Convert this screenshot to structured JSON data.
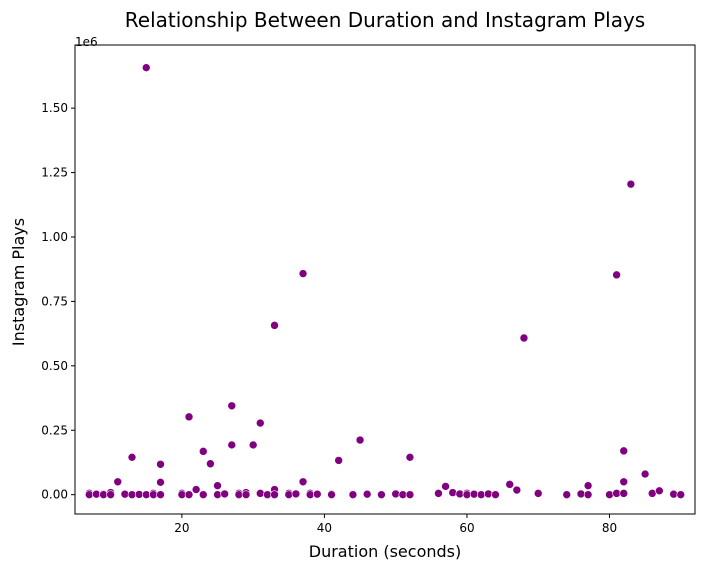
{
  "chart_data": {
    "type": "scatter",
    "title": "Relationship Between Duration and Instagram Plays",
    "xlabel": "Duration (seconds)",
    "ylabel": "Instagram Plays",
    "y_offset_text": "1e6",
    "xlim": [
      5,
      92
    ],
    "ylim": [
      -75000,
      1745000
    ],
    "xticks": [
      20,
      40,
      60,
      80
    ],
    "yticks": [
      0,
      250000,
      500000,
      750000,
      1000000,
      1250000,
      1500000
    ],
    "ytick_labels": [
      "0.00",
      "0.25",
      "0.50",
      "0.75",
      "1.00",
      "1.25",
      "1.50"
    ],
    "grid": false,
    "marker_color": "#800080",
    "series": [
      {
        "points": [
          [
            7,
            5000
          ],
          [
            7,
            0
          ],
          [
            8,
            2000
          ],
          [
            9,
            3000
          ],
          [
            9,
            0
          ],
          [
            10,
            8000
          ],
          [
            10,
            0
          ],
          [
            11,
            50000
          ],
          [
            12,
            2000
          ],
          [
            13,
            145000
          ],
          [
            13,
            0
          ],
          [
            14,
            1000
          ],
          [
            15,
            1657000
          ],
          [
            15,
            0
          ],
          [
            16,
            5000
          ],
          [
            16,
            0
          ],
          [
            17,
            118000
          ],
          [
            17,
            48000
          ],
          [
            17,
            0
          ],
          [
            20,
            5000
          ],
          [
            20,
            0
          ],
          [
            21,
            302000
          ],
          [
            21,
            0
          ],
          [
            22,
            20000
          ],
          [
            23,
            168000
          ],
          [
            23,
            0
          ],
          [
            24,
            120000
          ],
          [
            25,
            35000
          ],
          [
            25,
            0
          ],
          [
            26,
            3000
          ],
          [
            27,
            345000
          ],
          [
            27,
            193000
          ],
          [
            28,
            5000
          ],
          [
            28,
            0
          ],
          [
            29,
            8000
          ],
          [
            29,
            0
          ],
          [
            30,
            193000
          ],
          [
            31,
            278000
          ],
          [
            31,
            5000
          ],
          [
            32,
            0
          ],
          [
            33,
            657000
          ],
          [
            33,
            20000
          ],
          [
            33,
            0
          ],
          [
            35,
            5000
          ],
          [
            35,
            0
          ],
          [
            36,
            3000
          ],
          [
            37,
            858000
          ],
          [
            37,
            50000
          ],
          [
            38,
            5000
          ],
          [
            38,
            0
          ],
          [
            39,
            2000
          ],
          [
            41,
            3000
          ],
          [
            41,
            0
          ],
          [
            42,
            133000
          ],
          [
            44,
            0
          ],
          [
            45,
            212000
          ],
          [
            46,
            2000
          ],
          [
            48,
            0
          ],
          [
            50,
            3000
          ],
          [
            51,
            0
          ],
          [
            52,
            145000
          ],
          [
            52,
            0
          ],
          [
            56,
            5000
          ],
          [
            57,
            32000
          ],
          [
            58,
            8000
          ],
          [
            59,
            3000
          ],
          [
            60,
            5000
          ],
          [
            60,
            0
          ],
          [
            61,
            2000
          ],
          [
            62,
            0
          ],
          [
            63,
            3000
          ],
          [
            64,
            0
          ],
          [
            66,
            40000
          ],
          [
            67,
            18000
          ],
          [
            68,
            608000
          ],
          [
            70,
            5000
          ],
          [
            74,
            0
          ],
          [
            76,
            3000
          ],
          [
            77,
            35000
          ],
          [
            77,
            0
          ],
          [
            80,
            0
          ],
          [
            81,
            853000
          ],
          [
            81,
            5000
          ],
          [
            82,
            170000
          ],
          [
            82,
            50000
          ],
          [
            82,
            5000
          ],
          [
            83,
            1205000
          ],
          [
            85,
            80000
          ],
          [
            86,
            5000
          ],
          [
            87,
            15000
          ],
          [
            89,
            2000
          ],
          [
            90,
            0
          ]
        ]
      }
    ]
  }
}
